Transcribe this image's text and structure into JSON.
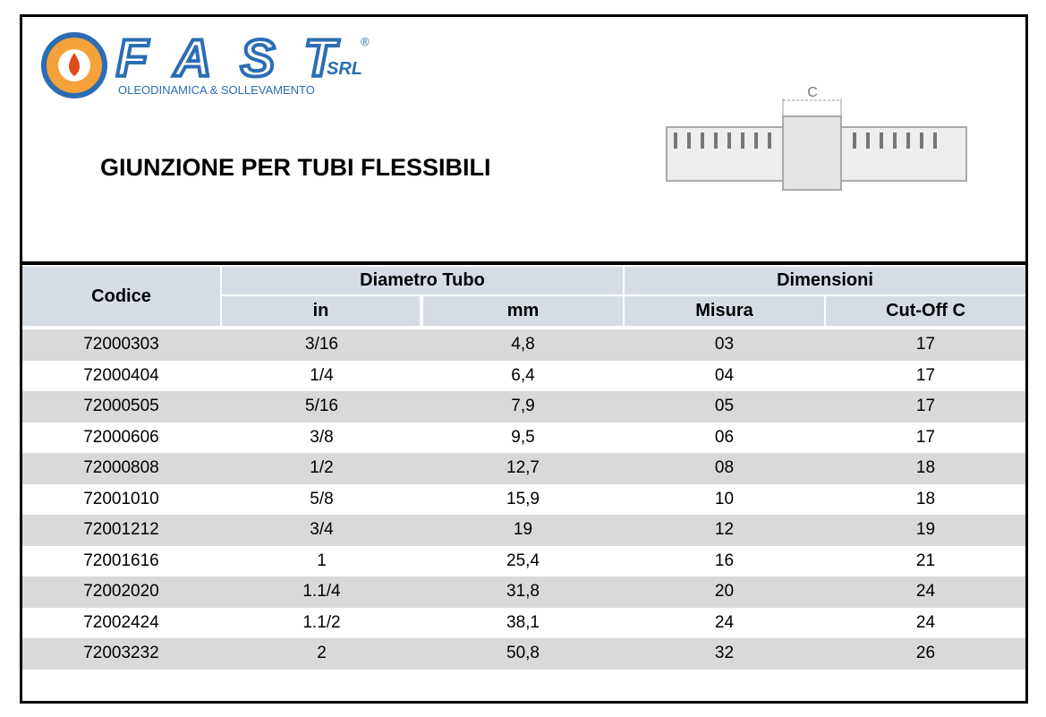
{
  "header": {
    "brand": "FAST",
    "registered": "®",
    "suffix": "SRL",
    "tagline": "OLEODINAMICA & SOLLEVAMENTO",
    "title": "GIUNZIONE PER TUBI FLESSIBILI",
    "drawing_label": "C"
  },
  "table": {
    "group_headers": [
      "Codice",
      "Diametro Tubo",
      "Dimensioni"
    ],
    "columns": [
      "in",
      "mm",
      "Misura",
      "Cut-Off C"
    ],
    "rows": [
      [
        "72000303",
        "3/16",
        "4,8",
        "03",
        "17"
      ],
      [
        "72000404",
        "1/4",
        "6,4",
        "04",
        "17"
      ],
      [
        "72000505",
        "5/16",
        "7,9",
        "05",
        "17"
      ],
      [
        "72000606",
        "3/8",
        "9,5",
        "06",
        "17"
      ],
      [
        "72000808",
        "1/2",
        "12,7",
        "08",
        "18"
      ],
      [
        "72001010",
        "5/8",
        "15,9",
        "10",
        "18"
      ],
      [
        "72001212",
        "3/4",
        "19",
        "12",
        "19"
      ],
      [
        "72001616",
        "1",
        "25,4",
        "16",
        "21"
      ],
      [
        "72002020",
        "1.1/4",
        "31,8",
        "20",
        "24"
      ],
      [
        "72002424",
        "1.1/2",
        "38,1",
        "24",
        "24"
      ],
      [
        "72003232",
        "2",
        "50,8",
        "32",
        "26"
      ]
    ]
  }
}
